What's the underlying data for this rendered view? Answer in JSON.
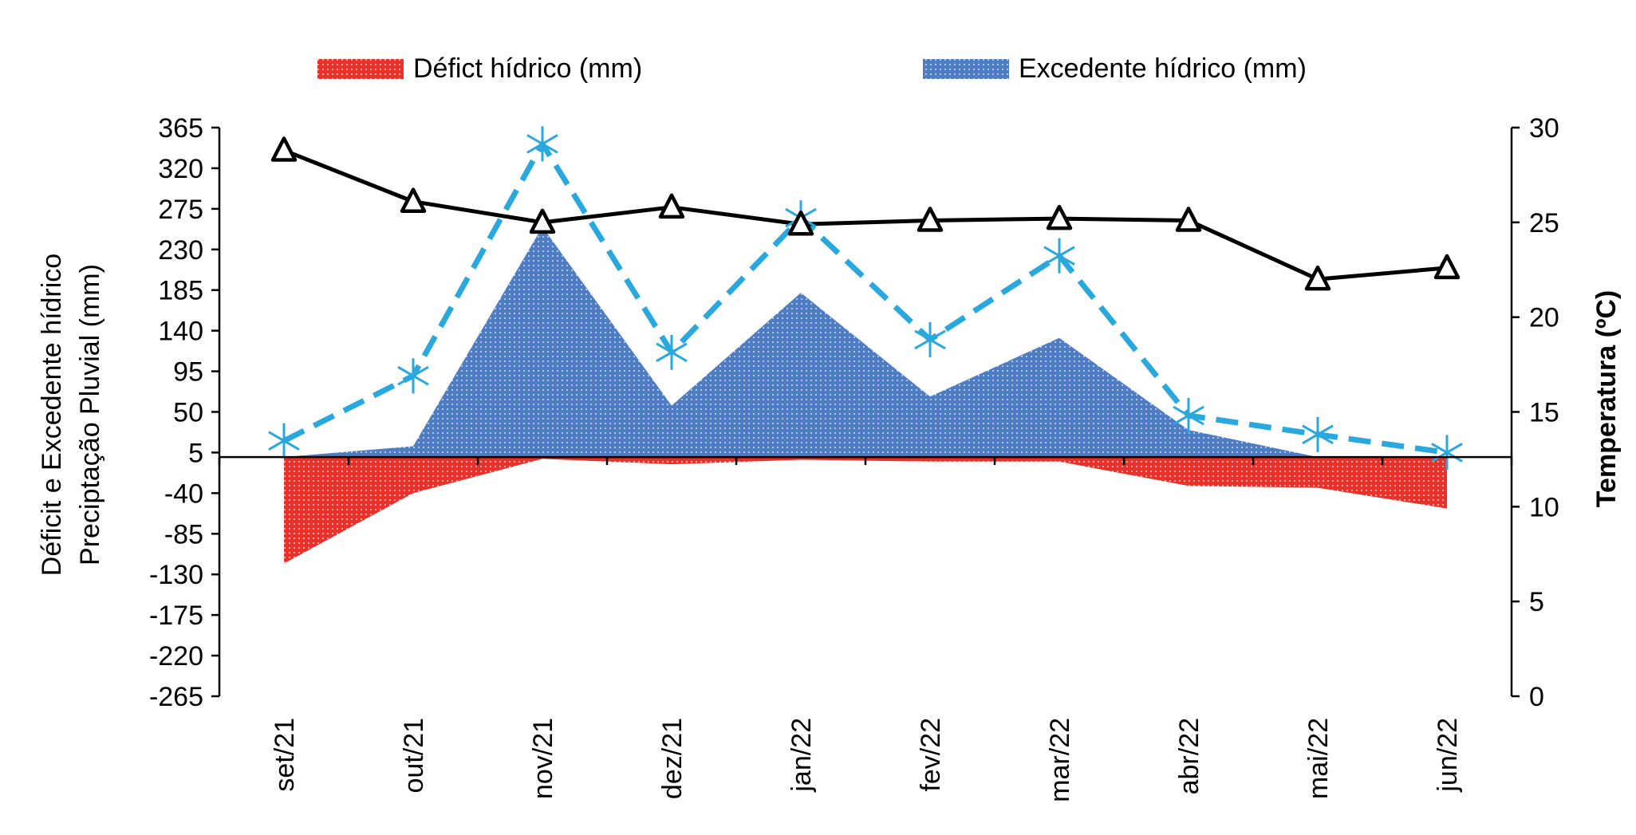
{
  "chart_data": {
    "type": "area",
    "categories": [
      "set/21",
      "out/21",
      "nov/21",
      "dez/21",
      "jan/22",
      "fev/22",
      "mar/22",
      "abr/22",
      "mai/22",
      "jun/22"
    ],
    "series": [
      {
        "name": "Défict hídrico (mm)",
        "kind": "area",
        "axis": "left",
        "color": "#e8312a",
        "values": [
          -118,
          -40,
          -2,
          -8,
          -3,
          -5,
          -5,
          -32,
          -34,
          -57
        ]
      },
      {
        "name": "Excedente hídrico (mm)",
        "kind": "area",
        "axis": "left",
        "color": "#4e7dc3",
        "values": [
          0,
          12,
          255,
          57,
          182,
          67,
          132,
          30,
          0,
          0
        ]
      },
      {
        "name": "Precipitação Pluvial (mm)",
        "kind": "dashed-line",
        "axis": "left",
        "color": "#29a8dd",
        "values": [
          18,
          90,
          347,
          116,
          265,
          130,
          223,
          46,
          25,
          5
        ]
      },
      {
        "name": "Temperatura (ºC)",
        "kind": "line",
        "axis": "right",
        "color": "#000000",
        "values": [
          28.8,
          26.1,
          25.0,
          25.8,
          24.9,
          25.1,
          25.2,
          25.1,
          22.0,
          22.6
        ]
      }
    ],
    "legend": [
      "Défict hídrico (mm)",
      "Excedente hídrico (mm)"
    ],
    "legend_position": "top",
    "y_left": {
      "label_line1": "Déficit e Excedente hídrico",
      "label_line2": "Preciptação Pluvial (mm)",
      "range": [
        -265,
        365
      ],
      "ticks": [
        "365",
        "320",
        "275",
        "230",
        "185",
        "140",
        "95",
        "50",
        "5",
        "-40",
        "-85",
        "-130",
        "-175",
        "-220",
        "-265"
      ]
    },
    "y_right": {
      "label": "Temperatura (ºC)",
      "range": [
        0,
        30
      ],
      "ticks": [
        "30",
        "25",
        "20",
        "15",
        "10",
        "5",
        "0"
      ]
    },
    "grid": false
  }
}
